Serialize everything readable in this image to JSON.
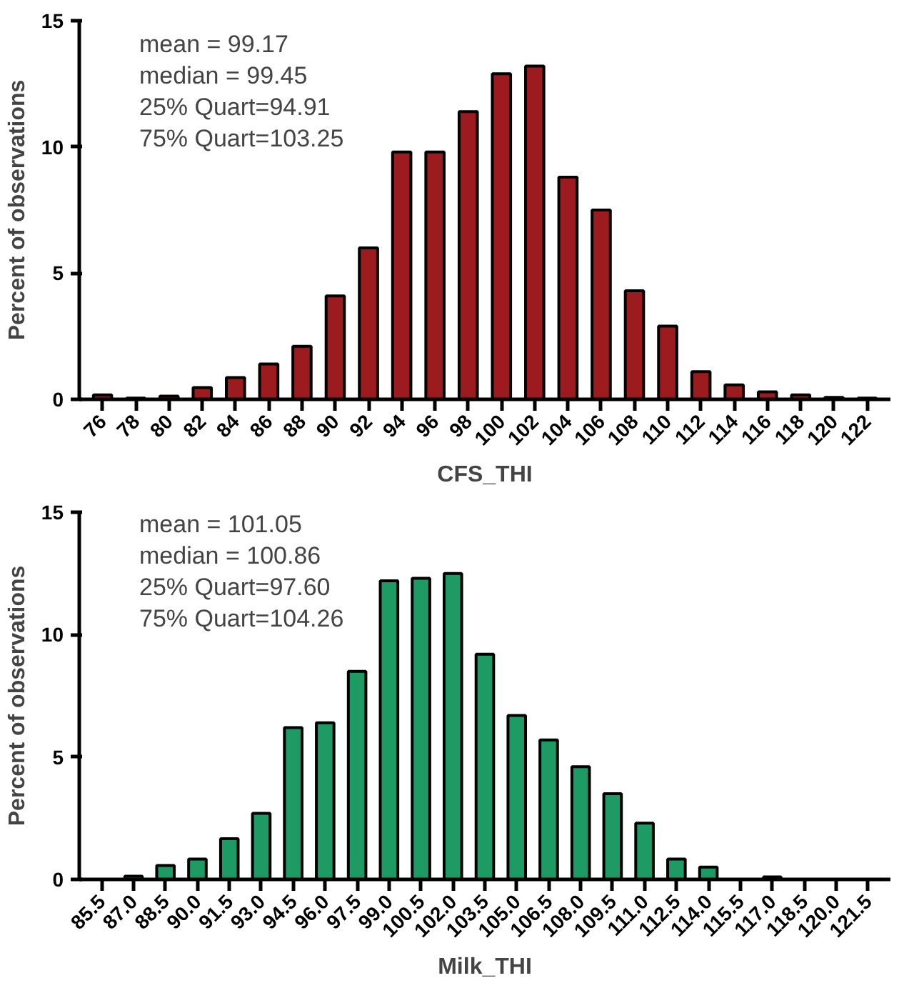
{
  "chart_data": [
    {
      "type": "bar",
      "xlabel": "CFS_THI",
      "ylabel": "Percent of observations",
      "categories": [
        "76",
        "78",
        "80",
        "82",
        "84",
        "86",
        "88",
        "90",
        "92",
        "94",
        "96",
        "98",
        "100",
        "102",
        "104",
        "106",
        "108",
        "110",
        "112",
        "114",
        "116",
        "118",
        "120",
        "122"
      ],
      "values": [
        0.18,
        0.05,
        0.13,
        0.47,
        0.86,
        1.4,
        2.1,
        4.1,
        6.0,
        9.8,
        9.8,
        11.4,
        12.9,
        13.2,
        8.8,
        7.5,
        4.3,
        2.9,
        1.1,
        0.57,
        0.3,
        0.18,
        0.08,
        0.05
      ],
      "color": "#9b1b1f",
      "ylim": [
        0,
        15
      ],
      "yticks": [
        0,
        5,
        10,
        15
      ],
      "grid": false,
      "annotations": [
        "mean =  99.17",
        "median = 99.45",
        "25% Quart=94.91",
        "75% Quart=103.25"
      ]
    },
    {
      "type": "bar",
      "xlabel": "Milk_THI",
      "ylabel": "Percent of observations",
      "categories": [
        "85.5",
        "87.0",
        "88.5",
        "90.0",
        "91.5",
        "93.0",
        "94.5",
        "96.0",
        "97.5",
        "99.0",
        "100.5",
        "102.0",
        "103.5",
        "105.0",
        "106.5",
        "108.0",
        "109.5",
        "111.0",
        "112.5",
        "114.0",
        "115.5",
        "117.0",
        "118.5",
        "120.0",
        "121.5"
      ],
      "values": [
        null,
        0.13,
        0.57,
        0.83,
        1.66,
        2.7,
        6.2,
        6.4,
        8.5,
        12.2,
        12.3,
        12.5,
        9.2,
        6.7,
        5.7,
        4.6,
        3.5,
        2.3,
        0.83,
        0.5,
        null,
        0.1,
        null,
        null,
        null
      ],
      "color": "#1e9a64",
      "ylim": [
        0,
        15
      ],
      "yticks": [
        0,
        5,
        10,
        15
      ],
      "grid": false,
      "annotations": [
        "mean =  101.05",
        "median = 100.86",
        "25% Quart=97.60",
        "75% Quart=104.26"
      ]
    }
  ]
}
